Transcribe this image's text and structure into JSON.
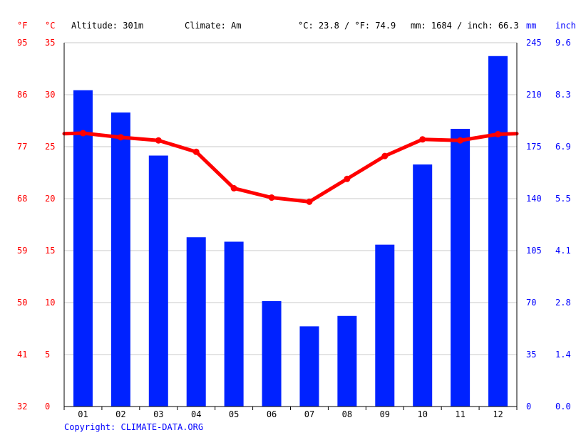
{
  "header": {
    "unit_f": "°F",
    "unit_c": "°C",
    "altitude": "Altitude: 301m",
    "climate": "Climate: Am",
    "temp_summary": "°C: 23.8 / °F: 74.9",
    "precip_summary": "mm: 1684 / inch: 66.3",
    "unit_mm": "mm",
    "unit_inch": "inch"
  },
  "footer": {
    "copyright": "Copyright: CLIMATE-DATA.ORG"
  },
  "colors": {
    "bars": "#0022ff",
    "line": "#ff0000",
    "grid": "#c8c8c8",
    "axis_temp": "#ff0000",
    "axis_precip": "#0000ff"
  },
  "chart_data": {
    "type": "bar",
    "categories": [
      "01",
      "02",
      "03",
      "04",
      "05",
      "06",
      "07",
      "08",
      "09",
      "10",
      "11",
      "12"
    ],
    "series": [
      {
        "type": "bar",
        "axis": "right",
        "values": [
          213,
          198,
          169,
          114,
          111,
          71,
          54,
          61,
          109,
          163,
          187,
          236
        ]
      },
      {
        "type": "line",
        "axis": "left",
        "values": [
          26.3,
          25.9,
          25.6,
          24.5,
          21.0,
          20.1,
          19.7,
          21.9,
          24.1,
          25.7,
          25.6,
          26.2
        ]
      }
    ],
    "y_left": {
      "range": [
        0,
        35
      ],
      "ticks": [
        "0",
        "5",
        "10",
        "15",
        "20",
        "25",
        "30",
        "35"
      ],
      "ticks_f": [
        "32",
        "41",
        "50",
        "59",
        "68",
        "77",
        "86",
        "95"
      ]
    },
    "y_right": {
      "range": [
        0,
        245
      ],
      "ticks": [
        "0",
        "35",
        "70",
        "105",
        "140",
        "175",
        "210",
        "245"
      ],
      "ticks_inch": [
        "0.0",
        "1.4",
        "2.8",
        "4.1",
        "5.5",
        "6.9",
        "8.3",
        "9.6"
      ]
    },
    "grid": true,
    "legend": "none"
  }
}
